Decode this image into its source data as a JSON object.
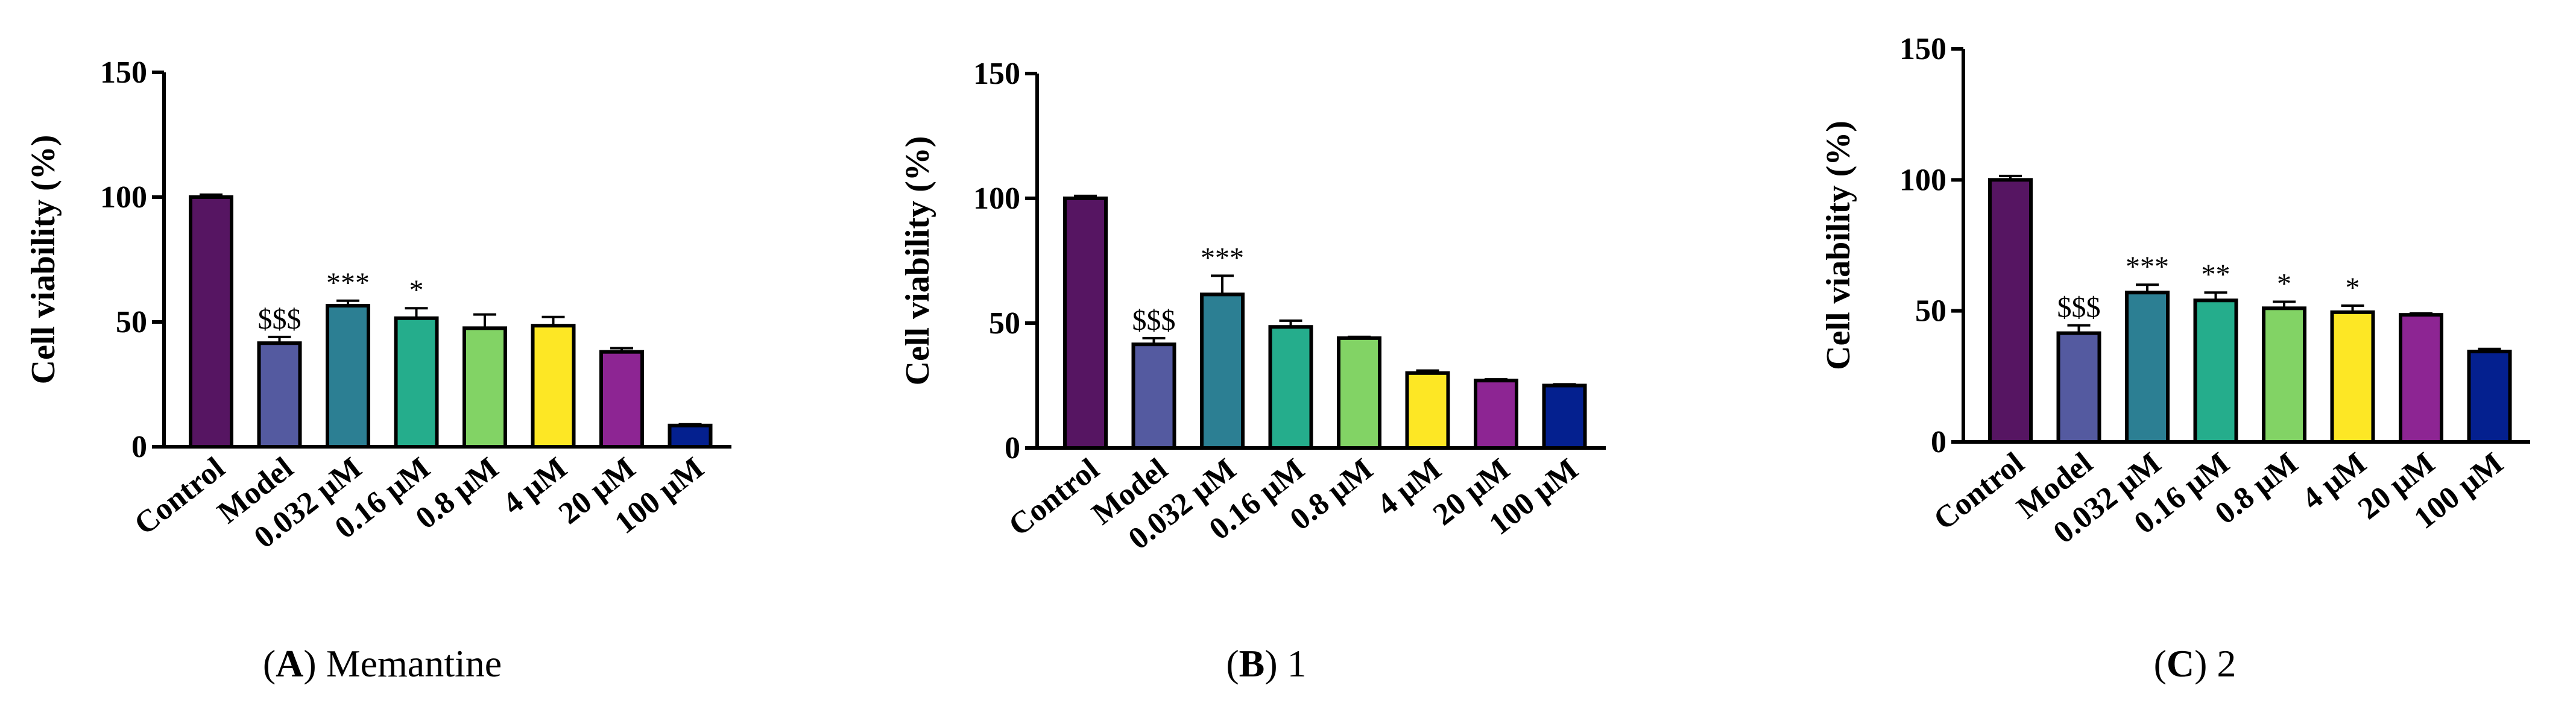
{
  "chart_data": [
    {
      "type": "bar",
      "panel_letter": "A",
      "caption_text": "Memantine",
      "ylabel": "Cell viability (%)",
      "xlabel": "",
      "ylim": [
        0,
        150
      ],
      "yticks": [
        "0",
        "50",
        "100",
        "150"
      ],
      "categories": [
        "Control",
        "Model",
        "0.032 μM",
        "0.16 μM",
        "0.8 μM",
        "4 μM",
        "20 μM",
        "100 μM"
      ],
      "values": [
        100,
        41.5,
        56.5,
        51.5,
        47.5,
        48.5,
        38,
        8.5
      ],
      "errors": [
        1,
        2.5,
        2,
        4,
        5.5,
        3.5,
        1.5,
        0.5
      ],
      "annotations": [
        "",
        "$$$",
        "***",
        "*",
        "",
        "",
        "",
        ""
      ],
      "colors": [
        "#561562",
        "#545aa0",
        "#2c7f93",
        "#25ad8c",
        "#82d365",
        "#fde725",
        "#8d2593",
        "#04208f"
      ]
    },
    {
      "type": "bar",
      "panel_letter": "B",
      "caption_text": "1",
      "ylabel": "Cell viability (%)",
      "xlabel": "",
      "ylim": [
        0,
        150
      ],
      "yticks": [
        "0",
        "50",
        "100",
        "150"
      ],
      "categories": [
        "Control",
        "Model",
        "0.032 μM",
        "0.16 μM",
        "0.8 μM",
        "4 μM",
        "20 μM",
        "100 μM"
      ],
      "values": [
        100,
        41.5,
        61.5,
        48.5,
        44,
        30,
        27,
        25
      ],
      "errors": [
        1,
        2.5,
        7.5,
        2.5,
        0.5,
        1,
        0.5,
        0.5
      ],
      "annotations": [
        "",
        "$$$",
        "***",
        "",
        "",
        "",
        "",
        ""
      ],
      "colors": [
        "#561562",
        "#545aa0",
        "#2c7f93",
        "#25ad8c",
        "#82d365",
        "#fde725",
        "#8d2593",
        "#04208f"
      ]
    },
    {
      "type": "bar",
      "panel_letter": "C",
      "caption_text": "2",
      "ylabel": "Cell viability (%)",
      "xlabel": "",
      "ylim": [
        0,
        150
      ],
      "yticks": [
        "0",
        "50",
        "100",
        "150"
      ],
      "categories": [
        "Control",
        "Model",
        "0.032 μM",
        "0.16 μM",
        "0.8 μM",
        "4 μM",
        "20 μM",
        "100 μM"
      ],
      "values": [
        100,
        41.5,
        57,
        54,
        51,
        49.5,
        48.5,
        34.5
      ],
      "errors": [
        1.5,
        3,
        3,
        3,
        2.5,
        2.5,
        0.5,
        1
      ],
      "annotations": [
        "",
        "$$$",
        "***",
        "**",
        "*",
        "*",
        "",
        ""
      ],
      "colors": [
        "#561562",
        "#545aa0",
        "#2c7f93",
        "#25ad8c",
        "#82d365",
        "#fde725",
        "#8d2593",
        "#04208f"
      ]
    }
  ]
}
